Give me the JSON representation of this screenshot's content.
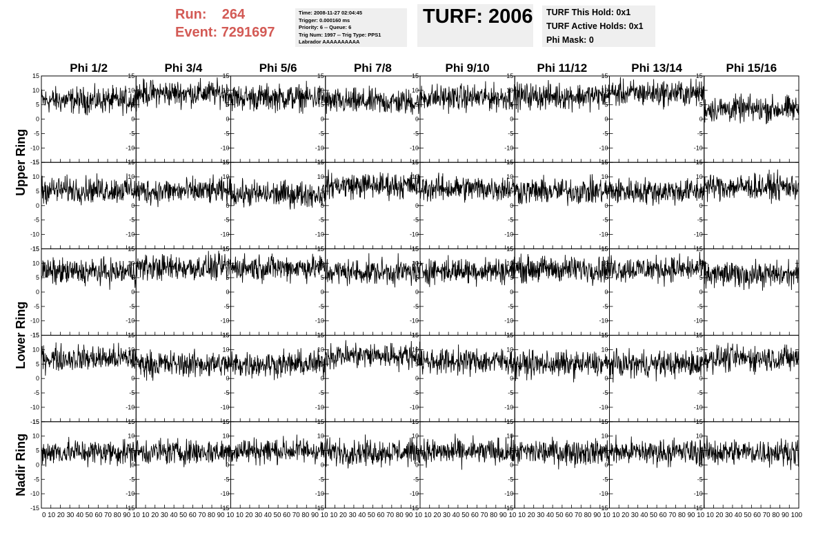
{
  "run": {
    "run_label": "Run:",
    "run_value": "264",
    "event_label": "Event:",
    "event_value": "7291697",
    "color": "#d35a55"
  },
  "info": {
    "time": "Time: 2008-11-27 02:04:45",
    "trigger": "Trigger: 0.000160 ms",
    "priority": "Priority: 6 -- Queue: 6",
    "trig": "Trig Num: 1997 -- Trig Type: PPS1",
    "labrador": "Labrador AAAAAAAAAA"
  },
  "turf": {
    "title": "TURF: 2006",
    "this_hold": "TURF This Hold: 0x1",
    "active_holds": "TURF Active Holds: 0x1",
    "phi_mask": "Phi Mask: 0"
  },
  "columns": [
    "Phi 1/2",
    "Phi 3/4",
    "Phi 5/6",
    "Phi 7/8",
    "Phi 9/10",
    "Phi 11/12",
    "Phi 13/14",
    "Phi 15/16"
  ],
  "ring_labels": [
    "Upper Ring",
    "Lower Ring",
    "Nadir Ring"
  ],
  "chart_data": {
    "type": "line",
    "grid": false,
    "rows": 5,
    "cols": 8,
    "xlim": [
      0,
      100
    ],
    "ylim": [
      -15,
      15
    ],
    "y_ticks": [
      15,
      10,
      5,
      0,
      -5,
      -10,
      -15
    ],
    "x_ticks": [
      "0",
      "10",
      "20",
      "30",
      "40",
      "50",
      "60",
      "70",
      "80",
      "90",
      "100"
    ],
    "bottom_tick_labels": "0 10 20 30 40 50 60 70 80 90 10 10 20 30 40 50 60 70 80 90 10 10 20 30 40 50 60 70 80 90 10 10 20 30 40 50 60 70 80 90 10 10 20 30 40 50 60 70 80 90 10 10 20 30 40 50 60 70 80 90 10 10 20 30 40 50 60 70 80 90 10 10 20 30 40 50 60 70 80 90 100",
    "samples_per_panel": 260,
    "noise_amplitude": 3.2,
    "panel_means": [
      [
        6.5,
        9,
        7.5,
        6,
        7.5,
        8,
        9,
        3.5
      ],
      [
        5.5,
        5,
        4,
        7,
        6,
        5,
        5,
        6.5
      ],
      [
        7,
        8.5,
        8.5,
        7,
        7.5,
        8,
        8,
        6
      ],
      [
        7,
        5,
        5,
        8,
        6,
        5,
        5,
        7
      ],
      [
        4.5,
        4.5,
        5,
        4.5,
        4.5,
        4.5,
        4.5,
        4.5
      ]
    ]
  }
}
